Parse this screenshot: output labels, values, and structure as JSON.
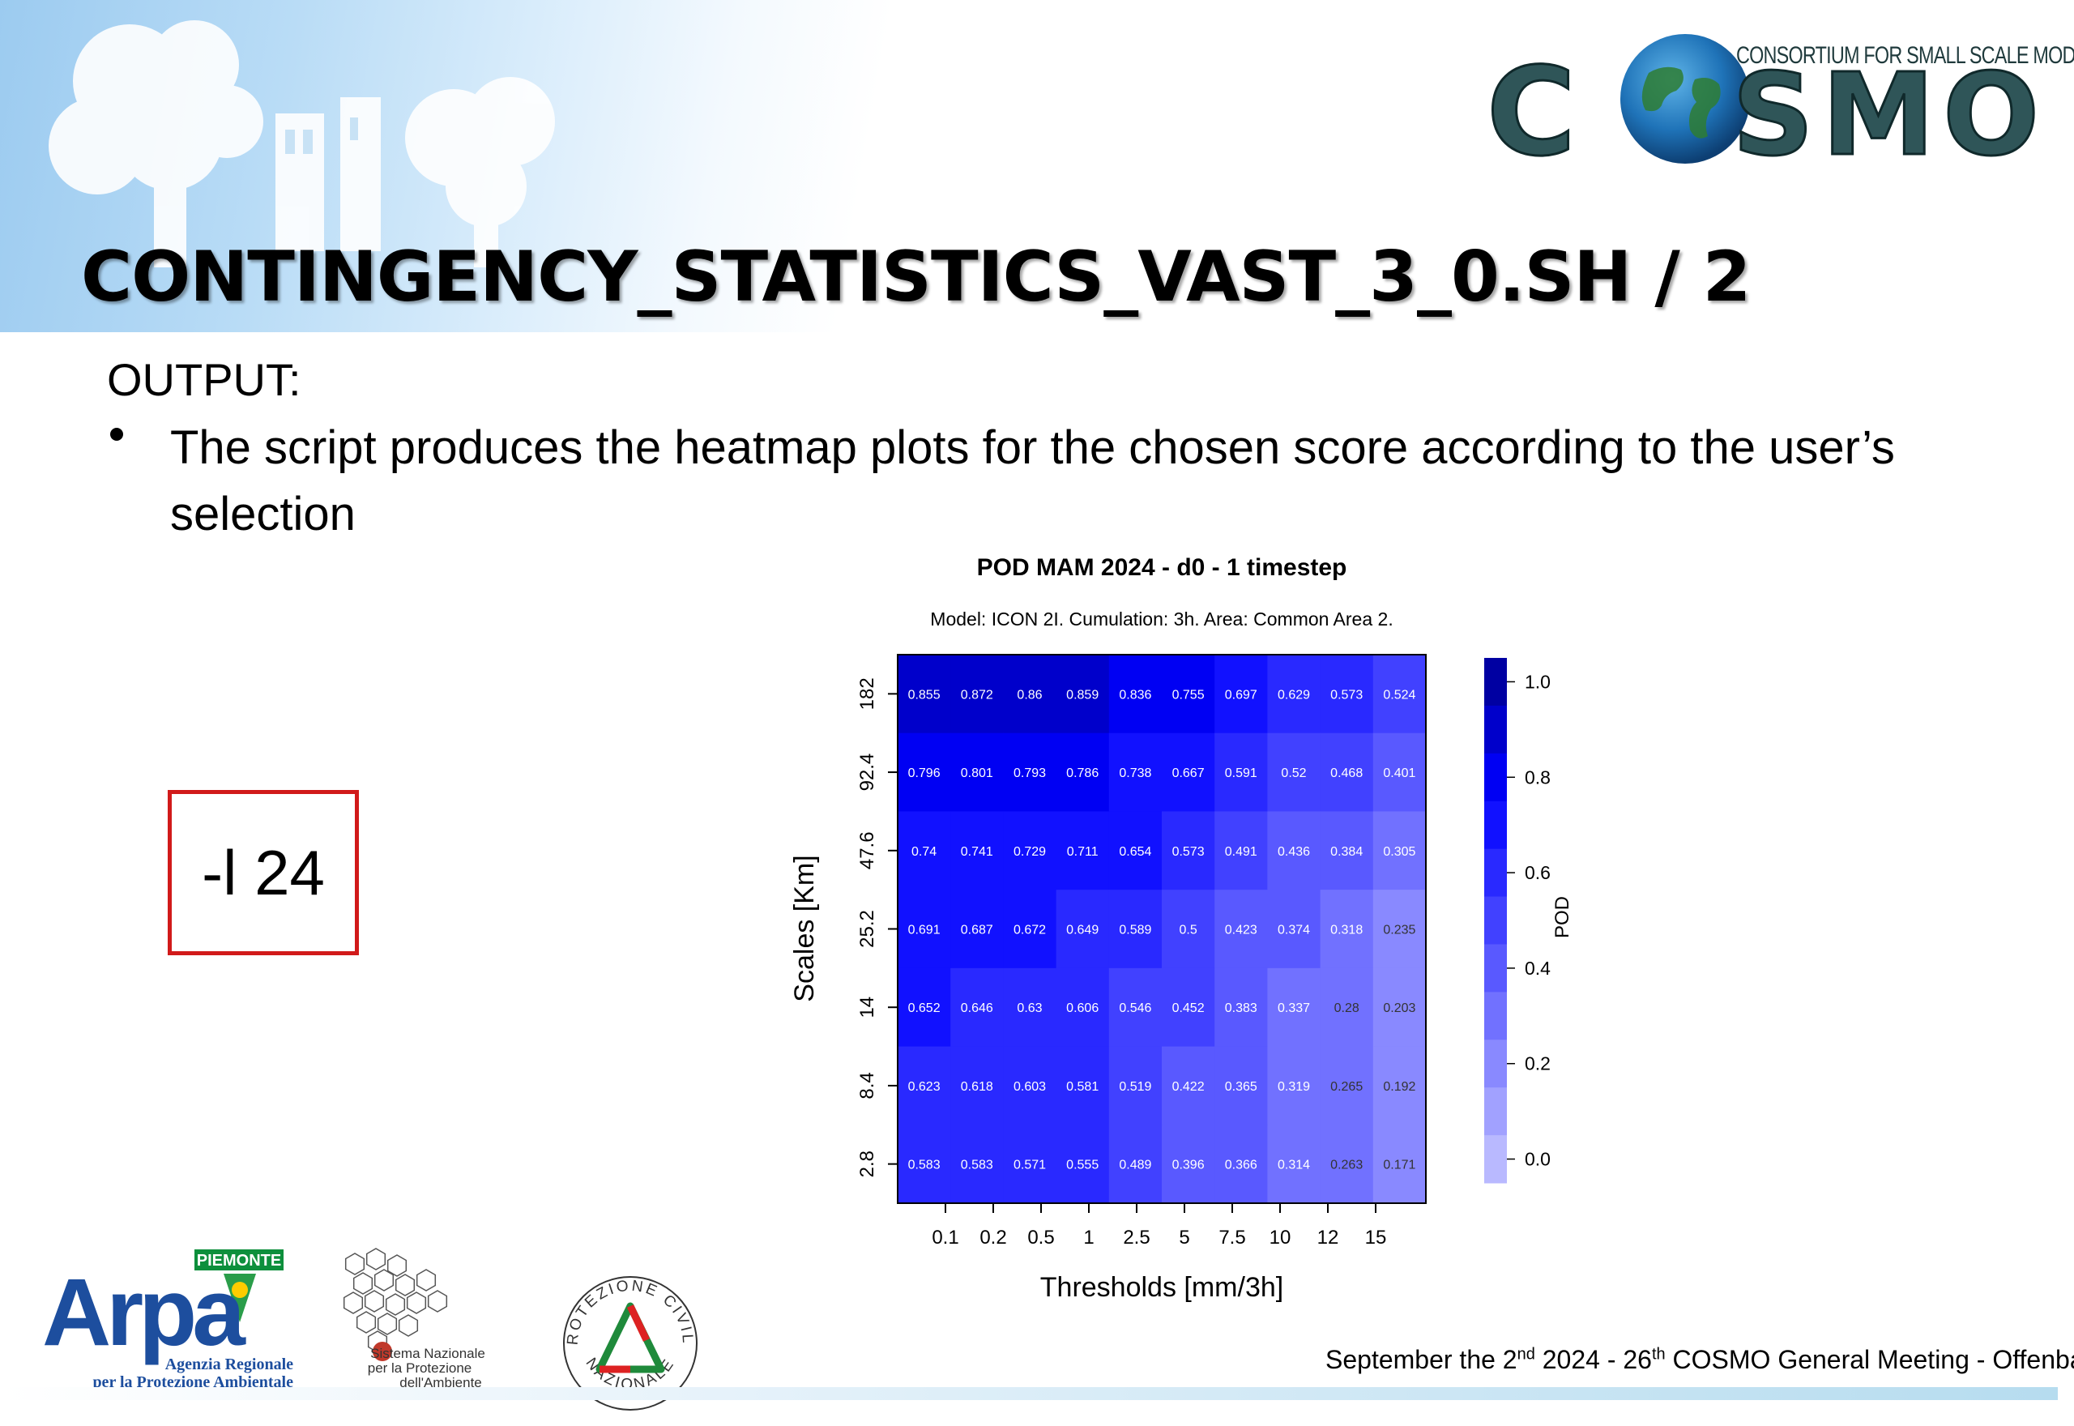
{
  "header": {
    "cosmo_tagline": "CONSORTIUM FOR SMALL SCALE MODELING",
    "cosmo_wordmark": "COSMO"
  },
  "title": "CONTINGENCY_STATISTICS_VAST_3_0.SH / 2",
  "content": {
    "section_label": "OUTPUT:",
    "bullet": "The script produces the heatmap plots for the chosen score according to the user’s selection",
    "param_box": "-l 24"
  },
  "chart_data": {
    "type": "heatmap",
    "title": "POD MAM 2024 - d0 - 1 timestep",
    "subtitle": "Model: ICON 2I. Cumulation: 3h. Area: Common Area 2.",
    "xlabel": "Thresholds [mm/3h]",
    "ylabel": "Scales [Km]",
    "x": [
      "0.1",
      "0.2",
      "0.5",
      "1",
      "2.5",
      "5",
      "7.5",
      "10",
      "12",
      "15"
    ],
    "y": [
      "182",
      "92.4",
      "47.6",
      "25.2",
      "14",
      "8.4",
      "2.8"
    ],
    "values": [
      [
        "0.855",
        "0.872",
        "0.86",
        "0.859",
        "0.836",
        "0.755",
        "0.697",
        "0.629",
        "0.573",
        "0.524"
      ],
      [
        "0.796",
        "0.801",
        "0.793",
        "0.786",
        "0.738",
        "0.667",
        "0.591",
        "0.52",
        "0.468",
        "0.401"
      ],
      [
        "0.74",
        "0.741",
        "0.729",
        "0.711",
        "0.654",
        "0.573",
        "0.491",
        "0.436",
        "0.384",
        "0.305"
      ],
      [
        "0.691",
        "0.687",
        "0.672",
        "0.649",
        "0.589",
        "0.5",
        "0.423",
        "0.374",
        "0.318",
        "0.235"
      ],
      [
        "0.652",
        "0.646",
        "0.63",
        "0.606",
        "0.546",
        "0.452",
        "0.383",
        "0.337",
        "0.28",
        "0.203"
      ],
      [
        "0.623",
        "0.618",
        "0.603",
        "0.581",
        "0.519",
        "0.422",
        "0.365",
        "0.319",
        "0.265",
        "0.192"
      ],
      [
        "0.583",
        "0.583",
        "0.571",
        "0.555",
        "0.489",
        "0.396",
        "0.366",
        "0.314",
        "0.263",
        "0.171"
      ]
    ],
    "colorbar": {
      "label": "POD",
      "ticks": [
        "1.0",
        "0.8",
        "0.6",
        "0.4",
        "0.2",
        "0.0"
      ],
      "range": [
        -0.05,
        1.05
      ],
      "colors": {
        "high": "#00007a",
        "mid": "#0000ff",
        "low": "#b9b9ff"
      }
    }
  },
  "footer": {
    "text_parts": [
      "September the 2",
      "nd",
      " 2024 - 26",
      "th",
      " COSMO General Meeting - Offenbach"
    ]
  },
  "logos": {
    "arpa_region": "PIEMONTE",
    "arpa_name": "Arpa",
    "arpa_line1": "Agenzia Regionale",
    "arpa_line2": "per la Protezione Ambientale",
    "snpa_line1": "Sistema Nazionale",
    "snpa_line2": "per la Protezione",
    "snpa_line3": "dell'Ambiente",
    "pcn_arc_top": "PROTEZIONE CIVILE",
    "pcn_arc_bottom": "NAZIONALE"
  }
}
